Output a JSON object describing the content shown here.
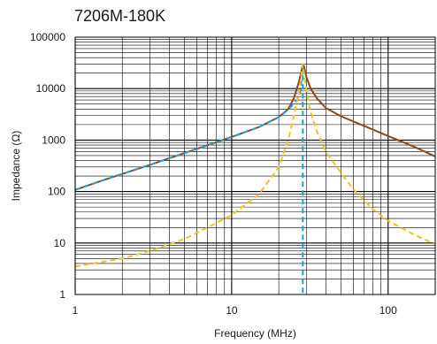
{
  "chart_data": {
    "type": "line",
    "title": "7206M-180K",
    "xlabel": "Frequency (MHz)",
    "ylabel": "Impedance (Ω)",
    "x_scale": "log",
    "y_scale": "log",
    "xlim": [
      1,
      200
    ],
    "ylim": [
      1,
      100000
    ],
    "x_ticks": [
      {
        "value": 1,
        "label": "1"
      },
      {
        "value": 10,
        "label": "10"
      },
      {
        "value": 100,
        "label": "100"
      }
    ],
    "y_ticks": [
      {
        "value": 1,
        "label": "1"
      },
      {
        "value": 10,
        "label": "10"
      },
      {
        "value": 100,
        "label": "100"
      },
      {
        "value": 1000,
        "label": "1000"
      },
      {
        "value": 10000,
        "label": "10000"
      },
      {
        "value": 100000,
        "label": "100000"
      }
    ],
    "grid": true,
    "legend": "none",
    "series": [
      {
        "color": "#8B4A1C",
        "style": "solid",
        "points": [
          [
            1,
            108
          ],
          [
            1.5,
            165
          ],
          [
            2,
            220
          ],
          [
            3,
            330
          ],
          [
            5,
            560
          ],
          [
            7,
            790
          ],
          [
            10,
            1150
          ],
          [
            15,
            1800
          ],
          [
            20,
            2800
          ],
          [
            23,
            4000
          ],
          [
            25,
            6500
          ],
          [
            27,
            14000
          ],
          [
            28,
            23000
          ],
          [
            28.5,
            30000
          ],
          [
            29,
            27000
          ],
          [
            30,
            17000
          ],
          [
            32,
            10000
          ],
          [
            35,
            6500
          ],
          [
            40,
            4200
          ],
          [
            50,
            2900
          ],
          [
            60,
            2300
          ],
          [
            80,
            1600
          ],
          [
            100,
            1200
          ],
          [
            150,
            720
          ],
          [
            200,
            480
          ]
        ]
      },
      {
        "color": "#1E9FDC",
        "style": "dashed",
        "points": [
          [
            1,
            108
          ],
          [
            1.5,
            165
          ],
          [
            2,
            220
          ],
          [
            3,
            330
          ],
          [
            5,
            560
          ],
          [
            7,
            790
          ],
          [
            10,
            1150
          ],
          [
            15,
            1800
          ],
          [
            20,
            2800
          ],
          [
            23,
            3900
          ],
          [
            25,
            5200
          ],
          [
            26.5,
            6500
          ],
          [
            27.5,
            9000
          ],
          [
            28,
            15000
          ],
          [
            28.3,
            26000
          ],
          [
            28.5,
            24000
          ],
          [
            28.5,
            1
          ]
        ]
      },
      {
        "color": "#F5C21B",
        "style": "dashed",
        "points": [
          [
            1,
            3.5
          ],
          [
            2,
            5
          ],
          [
            3,
            7
          ],
          [
            5,
            12
          ],
          [
            7,
            20
          ],
          [
            10,
            35
          ],
          [
            15,
            90
          ],
          [
            20,
            300
          ],
          [
            23,
            1000
          ],
          [
            25,
            3000
          ],
          [
            27,
            9000
          ],
          [
            28.5,
            30000
          ],
          [
            30,
            9000
          ],
          [
            32,
            3500
          ],
          [
            35,
            1500
          ],
          [
            40,
            600
          ],
          [
            50,
            230
          ],
          [
            60,
            110
          ],
          [
            80,
            45
          ],
          [
            100,
            27
          ],
          [
            150,
            14
          ],
          [
            200,
            9.5
          ]
        ]
      }
    ]
  }
}
